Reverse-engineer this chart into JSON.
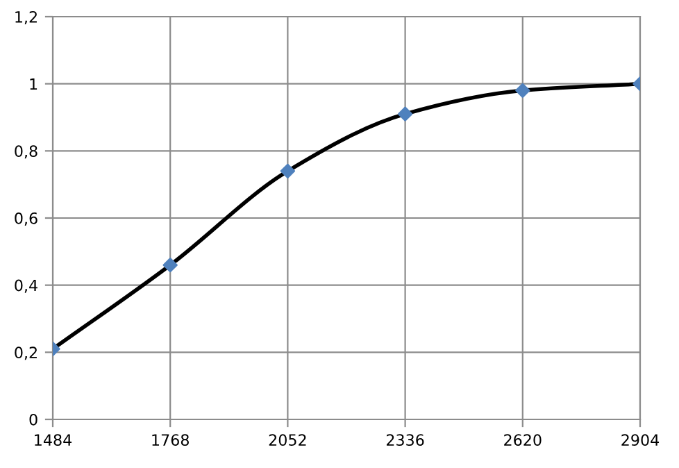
{
  "chart_data": {
    "type": "line",
    "x": [
      1484,
      1768,
      2052,
      2336,
      2620,
      2904
    ],
    "series": [
      {
        "color": "#000000",
        "marker": "none",
        "values": [
          0.21,
          0.46,
          0.74,
          0.91,
          0.98,
          1.0
        ]
      },
      {
        "type": "scatter",
        "color": "#4f81bd",
        "marker": "diamond",
        "values": [
          0.21,
          0.46,
          0.74,
          0.91,
          0.98,
          1.0
        ]
      }
    ],
    "xlim": [
      1484,
      2904
    ],
    "xticks": [
      {
        "value": 1484,
        "label": "1484"
      },
      {
        "value": 1768,
        "label": "1768"
      },
      {
        "value": 2052,
        "label": "2052"
      },
      {
        "value": 2336,
        "label": "2336"
      },
      {
        "value": 2620,
        "label": "2620"
      },
      {
        "value": 2904,
        "label": "2904"
      }
    ],
    "ylim": [
      0,
      1.2
    ],
    "yticks": [
      {
        "value": 0,
        "label": "0"
      },
      {
        "value": 0.2,
        "label": "0,2"
      },
      {
        "value": 0.4,
        "label": "0,4"
      },
      {
        "value": 0.6,
        "label": "0,6"
      },
      {
        "value": 0.8,
        "label": "0,8"
      },
      {
        "value": 1,
        "label": "1"
      },
      {
        "value": 1.2,
        "label": "1,2"
      }
    ],
    "grid": true,
    "legend": false
  }
}
